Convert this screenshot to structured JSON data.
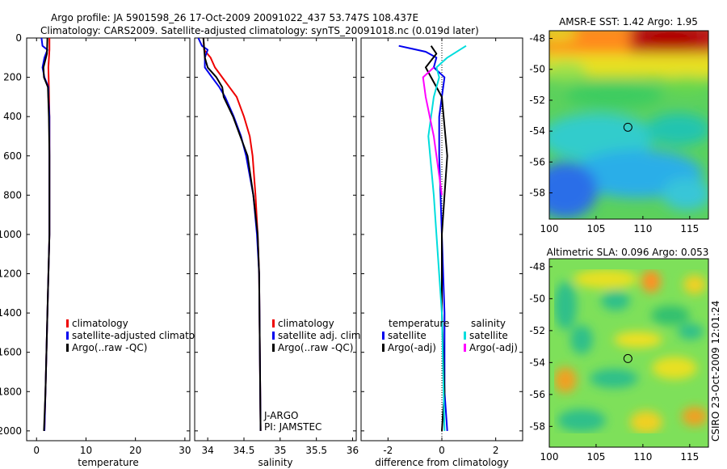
{
  "header": {
    "line1": "Argo profile: JA 5901598_26 17-Oct-2009 20091022_437 53.747S 108.437E",
    "line2": "Climatology: CARS2009. Satellite-adjusted climatology: synTS_20091018.nc (0.019d later)"
  },
  "colors": {
    "clim": "#ee0000",
    "sat": "#0000ee",
    "argo": "#000000",
    "sal_sat": "#00dddd",
    "sal_argo": "#ff00ff"
  },
  "chart_data": [
    {
      "type": "line",
      "id": "temperature",
      "xlabel": "temperature",
      "ylabel": "",
      "xlim": [
        -2,
        31
      ],
      "ylim": [
        2050,
        0
      ],
      "xticks": [
        "0",
        "10",
        "20",
        "30"
      ],
      "xtick_values": [
        0,
        10,
        20,
        30
      ],
      "yticks": [
        "0",
        "200",
        "400",
        "600",
        "800",
        "1000",
        "1200",
        "1400",
        "1600",
        "1800",
        "2000"
      ],
      "ytick_values": [
        0,
        200,
        400,
        600,
        800,
        1000,
        1200,
        1400,
        1600,
        1800,
        2000
      ],
      "legend": [
        "climatology",
        "satellite-adjusted climatolo",
        "Argo(..raw -QC)"
      ],
      "series": [
        {
          "name": "climatology",
          "color": "#ee0000",
          "points": [
            [
              2.6,
              0
            ],
            [
              2.6,
              60
            ],
            [
              2.4,
              150
            ],
            [
              2.5,
              250
            ],
            [
              2.6,
              400
            ],
            [
              2.6,
              600
            ],
            [
              2.6,
              1000
            ],
            [
              2.2,
              1400
            ],
            [
              1.8,
              1800
            ],
            [
              1.6,
              2000
            ]
          ]
        },
        {
          "name": "satellite-adjusted climatology",
          "color": "#0000ee",
          "points": [
            [
              1.0,
              0
            ],
            [
              1.2,
              40
            ],
            [
              2.2,
              60
            ],
            [
              1.6,
              100
            ],
            [
              1.2,
              150
            ],
            [
              1.6,
              200
            ],
            [
              2.4,
              250
            ],
            [
              2.4,
              300
            ],
            [
              2.6,
              400
            ],
            [
              2.6,
              600
            ],
            [
              2.6,
              1000
            ],
            [
              2.2,
              1400
            ],
            [
              1.8,
              1800
            ],
            [
              1.6,
              2000
            ]
          ]
        },
        {
          "name": "Argo(..raw -QC)",
          "color": "#000000",
          "points": [
            [
              2.2,
              0
            ],
            [
              2.1,
              80
            ],
            [
              1.4,
              150
            ],
            [
              1.5,
              200
            ],
            [
              2.3,
              250
            ],
            [
              2.5,
              400
            ],
            [
              2.6,
              600
            ],
            [
              2.6,
              1000
            ],
            [
              2.2,
              1400
            ],
            [
              1.8,
              1800
            ],
            [
              1.5,
              2000
            ]
          ]
        }
      ]
    },
    {
      "type": "line",
      "id": "salinity",
      "xlabel": "salinity",
      "ylabel": "",
      "xlim": [
        33.82,
        36.05
      ],
      "ylim": [
        2050,
        0
      ],
      "xticks": [
        "34",
        "34.5",
        "35",
        "35.5",
        "36"
      ],
      "xtick_values": [
        34,
        34.5,
        35,
        35.5,
        36
      ],
      "legend": [
        "climatology",
        "satellite adj. clim.",
        "Argo(..raw -QC)"
      ],
      "annotation": [
        "J-ARGO",
        "PI: JAMSTEC"
      ],
      "series": [
        {
          "name": "climatology",
          "color": "#ee0000",
          "points": [
            [
              33.94,
              0
            ],
            [
              33.95,
              60
            ],
            [
              34.04,
              100
            ],
            [
              34.1,
              150
            ],
            [
              34.2,
              200
            ],
            [
              34.3,
              250
            ],
            [
              34.4,
              300
            ],
            [
              34.5,
              400
            ],
            [
              34.58,
              500
            ],
            [
              34.62,
              600
            ],
            [
              34.66,
              800
            ],
            [
              34.69,
              1000
            ],
            [
              34.71,
              1200
            ],
            [
              34.72,
              1600
            ],
            [
              34.73,
              2000
            ]
          ]
        },
        {
          "name": "satellite adj. clim.",
          "color": "#0000ee",
          "points": [
            [
              33.87,
              0
            ],
            [
              33.92,
              40
            ],
            [
              34.0,
              60
            ],
            [
              33.96,
              100
            ],
            [
              33.96,
              150
            ],
            [
              34.06,
              200
            ],
            [
              34.16,
              250
            ],
            [
              34.24,
              300
            ],
            [
              34.36,
              400
            ],
            [
              34.46,
              500
            ],
            [
              34.53,
              600
            ],
            [
              34.63,
              800
            ],
            [
              34.68,
              1000
            ],
            [
              34.71,
              1200
            ],
            [
              34.72,
              1600
            ],
            [
              34.73,
              2000
            ]
          ]
        },
        {
          "name": "Argo(..raw -QC)",
          "color": "#000000",
          "points": [
            [
              33.94,
              0
            ],
            [
              33.96,
              100
            ],
            [
              34.0,
              150
            ],
            [
              34.12,
              200
            ],
            [
              34.2,
              250
            ],
            [
              34.22,
              300
            ],
            [
              34.35,
              400
            ],
            [
              34.45,
              500
            ],
            [
              34.55,
              600
            ],
            [
              34.63,
              800
            ],
            [
              34.69,
              1000
            ],
            [
              34.71,
              1200
            ],
            [
              34.72,
              1600
            ],
            [
              34.73,
              2000
            ]
          ]
        }
      ]
    },
    {
      "type": "line",
      "id": "difference",
      "xlabel": "difference from climatology",
      "ylabel": "",
      "xlim": [
        -3,
        3
      ],
      "ylim": [
        2050,
        0
      ],
      "xticks": [
        "-2",
        "0",
        "2"
      ],
      "xtick_values": [
        -2,
        0,
        2
      ],
      "legend_groups": [
        {
          "title": "temperature",
          "items": [
            "satellite",
            "Argo(-adj)"
          ]
        },
        {
          "title": "salinity",
          "items": [
            "satellite",
            "Argo(-adj)"
          ]
        }
      ],
      "series": [
        {
          "name": "temperature satellite",
          "color": "#0000ee",
          "points": [
            [
              -1.6,
              40
            ],
            [
              -0.6,
              70
            ],
            [
              -0.2,
              100
            ],
            [
              -0.3,
              150
            ],
            [
              0.1,
              200
            ],
            [
              0.0,
              300
            ],
            [
              -0.1,
              400
            ],
            [
              -0.1,
              600
            ],
            [
              0.0,
              1000
            ],
            [
              0.1,
              1400
            ],
            [
              0.1,
              1800
            ],
            [
              0.2,
              2000
            ]
          ]
        },
        {
          "name": "temperature Argo(-adj)",
          "color": "#000000",
          "points": [
            [
              -0.4,
              40
            ],
            [
              -0.2,
              80
            ],
            [
              -0.6,
              150
            ],
            [
              -0.4,
              200
            ],
            [
              0.0,
              300
            ],
            [
              0.1,
              450
            ],
            [
              0.2,
              600
            ],
            [
              0.1,
              800
            ],
            [
              0.0,
              1000
            ],
            [
              0.0,
              1400
            ],
            [
              0.1,
              1800
            ],
            [
              0.0,
              2000
            ]
          ]
        },
        {
          "name": "salinity satellite",
          "color": "#00dddd",
          "points": [
            [
              0.9,
              40
            ],
            [
              0.2,
              100
            ],
            [
              -0.2,
              150
            ],
            [
              -0.1,
              200
            ],
            [
              -0.3,
              300
            ],
            [
              -0.5,
              500
            ],
            [
              -0.3,
              800
            ],
            [
              -0.2,
              1000
            ],
            [
              0.0,
              1400
            ],
            [
              0.1,
              2000
            ]
          ]
        },
        {
          "name": "salinity Argo(-adj)",
          "color": "#ff00ff",
          "points": [
            [
              -0.3,
              150
            ],
            [
              -0.7,
              200
            ],
            [
              -0.6,
              300
            ],
            [
              -0.3,
              500
            ],
            [
              0.0,
              800
            ]
          ]
        }
      ]
    },
    {
      "type": "heatmap",
      "id": "sst-map",
      "title": "AMSR-E SST: 1.42 Argo: 1.95",
      "xlim": [
        100,
        117
      ],
      "ylim": [
        -59.7,
        -47.5
      ],
      "xticks": [
        "100",
        "105",
        "110",
        "115"
      ],
      "xtick_values": [
        100,
        105,
        110,
        115
      ],
      "yticks": [
        "-48",
        "-50",
        "-52",
        "-54",
        "-56",
        "-58"
      ],
      "ytick_values": [
        -48,
        -50,
        -52,
        -54,
        -56,
        -58
      ],
      "marker": {
        "lon": 108.4,
        "lat": -53.75
      }
    },
    {
      "type": "heatmap",
      "id": "sla-map",
      "title": "Altimetric SLA: 0.096 Argo: 0.053",
      "xlim": [
        100,
        117
      ],
      "ylim": [
        -59.3,
        -47.5
      ],
      "xticks": [
        "100",
        "105",
        "110",
        "115"
      ],
      "xtick_values": [
        100,
        105,
        110,
        115
      ],
      "yticks": [
        "-48",
        "-50",
        "-52",
        "-54",
        "-56",
        "-58"
      ],
      "ytick_values": [
        -48,
        -50,
        -52,
        -54,
        -56,
        -58
      ],
      "marker": {
        "lon": 108.4,
        "lat": -53.75
      },
      "side_label": "CSIRO 23-Oct-2009 12:01:24"
    }
  ]
}
